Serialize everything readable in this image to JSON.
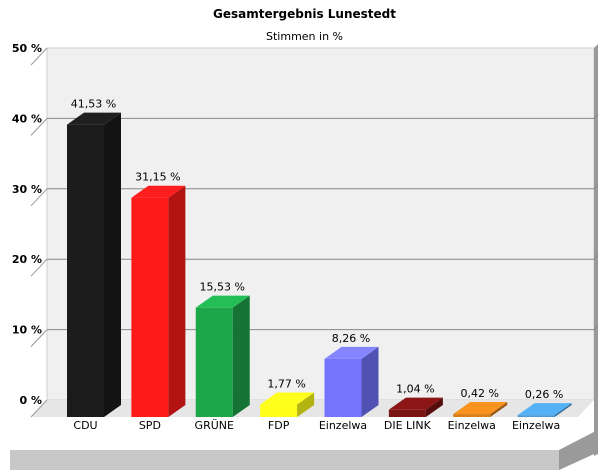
{
  "chart_data": {
    "type": "bar",
    "title": "Gesamtergebnis Lunestedt",
    "subtitle": "Stimmen in %",
    "categories": [
      "CDU",
      "SPD",
      "GRÜNE",
      "FDP",
      "Einzelwa",
      "DIE LINK",
      "Einzelwa",
      "Einzelwa"
    ],
    "values": [
      41.53,
      31.15,
      15.53,
      1.77,
      8.26,
      1.04,
      0.42,
      0.26
    ],
    "value_labels": [
      "41,53 %",
      "31,15 %",
      "15,53 %",
      "1,77 %",
      "8,26 %",
      "1,04 %",
      "0,42 %",
      "0,26 %"
    ],
    "colors": [
      "#1b1b1b",
      "#ff1a1a",
      "#1ea64b",
      "#ffff1a",
      "#7474ff",
      "#7a1313",
      "#d9801a",
      "#4a9ad6"
    ],
    "yticks": [
      "50 %",
      "40 %",
      "30 %",
      "20 %",
      "10 %",
      "0 %"
    ],
    "ylim": [
      0,
      50
    ],
    "grid": true,
    "style": "3d"
  }
}
